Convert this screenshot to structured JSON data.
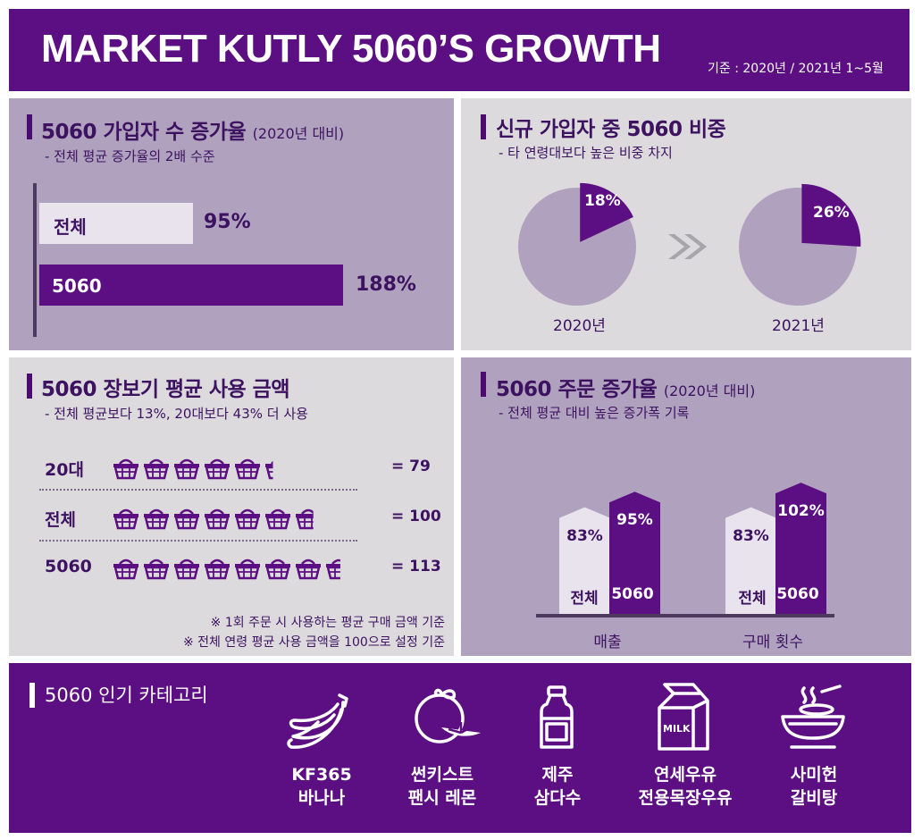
{
  "header": {
    "title": "MARKET KUTLY 5060’S GROWTH",
    "basis": "기준 : 2020년 / 2021년 1~5월"
  },
  "signup_growth": {
    "title": "5060 가입자 수 증가율",
    "title_suffix": "(2020년 대비)",
    "subtitle": "- 전체 평균 증가율의 2배 수준",
    "bars": [
      {
        "label": "전체",
        "value": 95,
        "value_label": "95%"
      },
      {
        "label": "5060",
        "value": 188,
        "value_label": "188%"
      }
    ]
  },
  "new_share": {
    "title": "신규 가입자 중 5060 비중",
    "subtitle": "- 타 연령대보다 높은 비중 차지",
    "pies": [
      {
        "year": "2020년",
        "share": 18,
        "share_label": "18%"
      },
      {
        "year": "2021년",
        "share": 26,
        "share_label": "26%"
      }
    ]
  },
  "avg_spend": {
    "title": "5060 장보기 평균 사용 금액",
    "subtitle": "- 전체 평균보다 13%, 20대보다 43% 더 사용",
    "rows": [
      {
        "label": "20대",
        "value": 79,
        "value_label": "= 79"
      },
      {
        "label": "전체",
        "value": 100,
        "value_label": "= 100"
      },
      {
        "label": "5060",
        "value": 113,
        "value_label": "= 113"
      }
    ],
    "notes": [
      "※ 1회 주문 시 사용하는 평균 구매 금액 기준",
      "※ 전체 연령 평균 사용 금액을 100으로 설정 기준"
    ]
  },
  "order_growth": {
    "title": "5060 주문 증가율",
    "title_suffix": "(2020년 대비)",
    "subtitle": "- 전체 평균 대비 높은 증가폭 기록",
    "groups": [
      {
        "category": "매출",
        "bars": [
          {
            "label": "전체",
            "value": 83,
            "value_label": "83%"
          },
          {
            "label": "5060",
            "value": 95,
            "value_label": "95%"
          }
        ]
      },
      {
        "category": "구매 횟수",
        "bars": [
          {
            "label": "전체",
            "value": 83,
            "value_label": "83%"
          },
          {
            "label": "5060",
            "value": 102,
            "value_label": "102%"
          }
        ]
      }
    ]
  },
  "popular": {
    "title": "5060 인기 카테고리",
    "milk_text": "MILK",
    "items": [
      {
        "icon": "banana-icon",
        "line1": "KF365",
        "line2": "바나나"
      },
      {
        "icon": "lemon-icon",
        "line1": "썬키스트",
        "line2": "팬시 레몬"
      },
      {
        "icon": "water-bottle-icon",
        "line1": "제주",
        "line2": "삼다수"
      },
      {
        "icon": "milk-carton-icon",
        "line1": "연세우유",
        "line2": "전용목장우유"
      },
      {
        "icon": "soup-bowl-icon",
        "line1": "사미헌",
        "line2": "갈비탕"
      }
    ]
  },
  "colors": {
    "purple": "#5c0f82",
    "light_purple": "#b0a2bf",
    "grey": "#dcdadd",
    "pale": "#e8e3ec",
    "white": "#ffffff"
  }
}
